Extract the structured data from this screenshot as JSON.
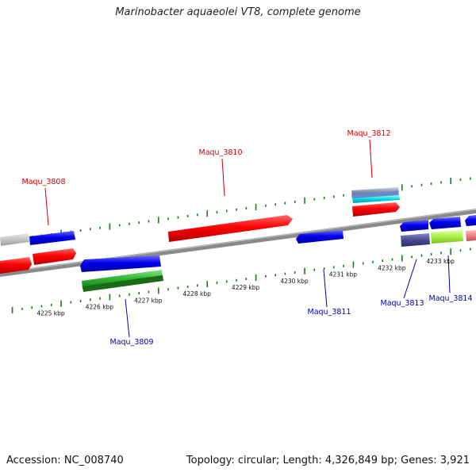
{
  "title": "Marinobacter aquaeolei VT8, complete genome",
  "footer": {
    "accession": "Accession: NC_008740",
    "summary": "Topology: circular; Length: 4,326,849 bp; Genes: 3,921"
  },
  "colors": {
    "axis": "#808080",
    "tick": "#1a7a1a",
    "label_forward": "#cc0000",
    "label_reverse": "#0000aa"
  },
  "scale": {
    "unit": "kbp",
    "ticks": [
      {
        "kbp": 4225,
        "label": "4225 kbp"
      },
      {
        "kbp": 4226,
        "label": "4226 kbp"
      },
      {
        "kbp": 4227,
        "label": "4227 kbp"
      },
      {
        "kbp": 4228,
        "label": "4228 kbp"
      },
      {
        "kbp": 4229,
        "label": "4229 kbp"
      },
      {
        "kbp": 4230,
        "label": "4230 kbp"
      },
      {
        "kbp": 4231,
        "label": "4231 kbp"
      },
      {
        "kbp": 4232,
        "label": "4232 kbp"
      },
      {
        "kbp": 4233,
        "label": "4233 kbp"
      }
    ]
  },
  "gene_labels": [
    {
      "name": "Maqu_3808",
      "strand": "forward"
    },
    {
      "name": "Maqu_3809",
      "strand": "reverse"
    },
    {
      "name": "Maqu_3810",
      "strand": "forward"
    },
    {
      "name": "Maqu_3811",
      "strand": "reverse"
    },
    {
      "name": "Maqu_3812",
      "strand": "forward"
    },
    {
      "name": "Maqu_3813",
      "strand": "reverse"
    },
    {
      "name": "Maqu_3814",
      "strand": "reverse"
    }
  ]
}
